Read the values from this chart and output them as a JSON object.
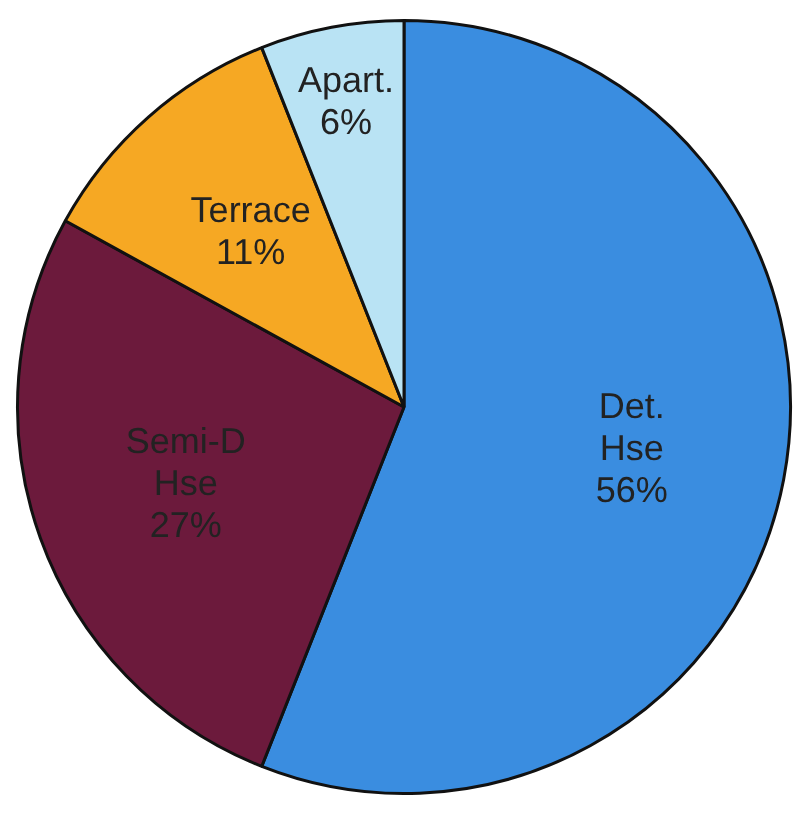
{
  "chart_data": {
    "type": "pie",
    "categories": [
      "Det. Hse",
      "Semi-D Hse",
      "Terrace",
      "Apart."
    ],
    "values": [
      56,
      27,
      11,
      6
    ],
    "value_labels": [
      "56%",
      "27%",
      "11%",
      "6%"
    ],
    "colors": [
      "#3a8de0",
      "#6c1a3c",
      "#f6a823",
      "#b9e3f4"
    ],
    "legend": false
  }
}
